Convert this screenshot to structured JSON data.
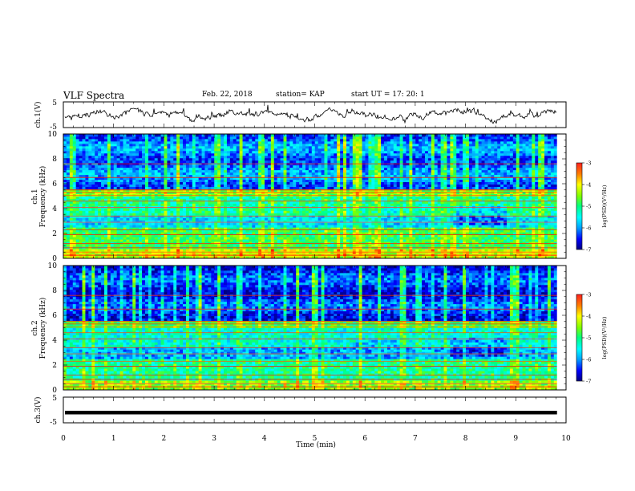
{
  "header": {
    "title": "VLF Spectra",
    "date": "Feb. 22, 2018",
    "station": "station= KAP",
    "start": "start  UT =   17: 20: 1"
  },
  "chart_data": {
    "type": "heatmap",
    "xlabel": "Time  (min)",
    "xlim": [
      0,
      10
    ],
    "xticks": [
      "0",
      "1",
      "2",
      "3",
      "4",
      "5",
      "6",
      "7",
      "8",
      "9",
      "10"
    ],
    "panels": [
      {
        "id": "ch1-waveform",
        "type": "line",
        "ylabel": "ch.1(V)",
        "ylim": [
          -5,
          5
        ],
        "yticks": [
          "5",
          "-5"
        ]
      },
      {
        "id": "ch1-spectrogram",
        "type": "heatmap",
        "ylabel_top": "ch.1",
        "ylabel": "Frequency  (kHz)",
        "ylim": [
          0,
          10
        ],
        "yticks": [
          "0",
          "2",
          "4",
          "6",
          "8",
          "10"
        ],
        "colorbar": {
          "label": "log(PSD)(V²/Hz)",
          "range": [
            -7,
            -3
          ],
          "ticks": [
            "-3",
            "-4",
            "-5",
            "-6",
            "-7"
          ]
        }
      },
      {
        "id": "ch2-spectrogram",
        "type": "heatmap",
        "ylabel_top": "ch.2",
        "ylabel": "Frequency  (kHz)",
        "ylim": [
          0,
          10
        ],
        "yticks": [
          "0",
          "2",
          "4",
          "6",
          "8",
          "10"
        ],
        "colorbar": {
          "label": "log(PSD)(V²/Hz)",
          "range": [
            -7,
            -3
          ],
          "ticks": [
            "-3",
            "-4",
            "-5",
            "-6",
            "-7"
          ]
        }
      },
      {
        "id": "ch3-waveform",
        "type": "line",
        "ylabel": "ch.3(V)",
        "ylim": [
          -5,
          5
        ],
        "yticks": [
          "5",
          "-5"
        ],
        "level": -1
      }
    ],
    "colormap": [
      "#000080",
      "#0000ff",
      "#00a0ff",
      "#00ffff",
      "#00ff80",
      "#80ff00",
      "#ffff00",
      "#ff8000",
      "#ff0000",
      "#ffffff"
    ]
  }
}
